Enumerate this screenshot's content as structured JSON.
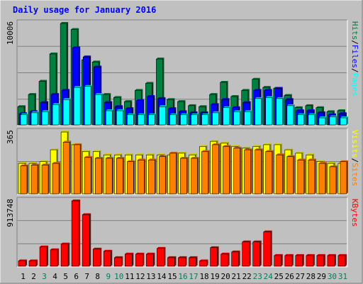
{
  "chart_data": [
    {
      "type": "bar",
      "title": "Daily usage for January 2016",
      "categories": [
        "1",
        "2",
        "3",
        "4",
        "5",
        "6",
        "7",
        "8",
        "9",
        "10",
        "11",
        "12",
        "13",
        "14",
        "15",
        "16",
        "17",
        "18",
        "19",
        "20",
        "21",
        "22",
        "23",
        "24",
        "25",
        "26",
        "27",
        "28",
        "29",
        "30",
        "31"
      ],
      "weekend_days": [
        "3",
        "9",
        "10",
        "16",
        "17",
        "23",
        "24",
        "30",
        "31"
      ],
      "ymax_label": "10006",
      "ylim": [
        0,
        10006
      ],
      "side_labels": [
        "Pages",
        "Files",
        "Hits"
      ],
      "series": [
        {
          "name": "Hits",
          "color": "#008040",
          "values": [
            1800,
            3000,
            4300,
            7000,
            10006,
            9400,
            6400,
            6200,
            3000,
            2700,
            2300,
            3400,
            4100,
            6500,
            2500,
            2300,
            1900,
            1800,
            3000,
            4200,
            2800,
            3400,
            4500,
            3700,
            3600,
            2900,
            1700,
            1900,
            1700,
            1300,
            1400
          ]
        },
        {
          "name": "Files",
          "color": "#0000ff",
          "values": [
            1100,
            1300,
            2200,
            3000,
            3400,
            7600,
            6700,
            5700,
            2200,
            1800,
            1600,
            2400,
            2800,
            2600,
            1600,
            1300,
            1200,
            1200,
            2000,
            2500,
            1700,
            2200,
            3400,
            3400,
            3600,
            2500,
            1400,
            1400,
            1200,
            1000,
            1100
          ]
        },
        {
          "name": "Pages",
          "color": "#00ffff",
          "values": [
            1000,
            1200,
            1300,
            2000,
            2500,
            3700,
            3800,
            3000,
            1400,
            1400,
            1000,
            1000,
            1000,
            1800,
            1000,
            1000,
            1000,
            1000,
            1200,
            1700,
            1300,
            1300,
            2600,
            2700,
            2600,
            1900,
            1000,
            1000,
            700,
            800,
            700
          ]
        }
      ]
    },
    {
      "type": "bar",
      "ymax_label": "365",
      "ylim": [
        0,
        365
      ],
      "side_labels": [
        "Sites",
        "Visits"
      ],
      "series": [
        {
          "name": "Visits",
          "color": "#ffff00",
          "values": [
            180,
            180,
            190,
            260,
            365,
            290,
            250,
            250,
            230,
            230,
            230,
            230,
            230,
            230,
            230,
            240,
            230,
            280,
            310,
            300,
            280,
            270,
            280,
            290,
            290,
            260,
            240,
            230,
            190,
            180,
            180
          ]
        },
        {
          "name": "Sites",
          "color": "#ff8000",
          "values": [
            165,
            170,
            170,
            180,
            305,
            290,
            215,
            210,
            210,
            210,
            190,
            200,
            200,
            220,
            240,
            210,
            210,
            250,
            290,
            280,
            270,
            260,
            260,
            250,
            230,
            220,
            200,
            200,
            180,
            160,
            190
          ]
        }
      ]
    },
    {
      "type": "bar",
      "ymax_label": "913748",
      "ylim": [
        0,
        913748
      ],
      "side_labels": [
        "KBytes"
      ],
      "series": [
        {
          "name": "KBytes",
          "color": "#ff0000",
          "values": [
            75000,
            75000,
            270000,
            230000,
            310000,
            913748,
            721000,
            240000,
            210000,
            120000,
            170000,
            170000,
            170000,
            250000,
            120000,
            120000,
            120000,
            75000,
            260000,
            170000,
            200000,
            340000,
            340000,
            480000,
            150000,
            150000,
            150000,
            150000,
            150000,
            150000,
            150000
          ]
        }
      ]
    }
  ]
}
